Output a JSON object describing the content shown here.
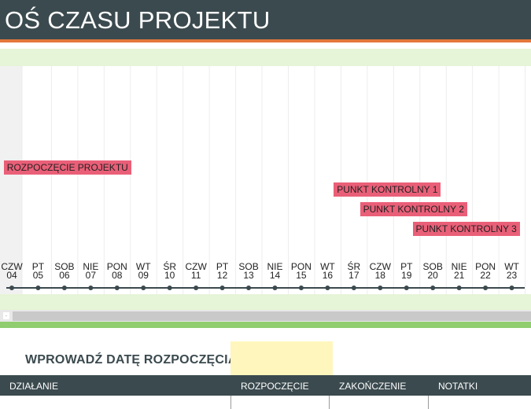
{
  "header": {
    "title": "OŚ CZASU PROJEKTU"
  },
  "timeline": {
    "days": [
      {
        "dow": "CZW",
        "num": "04"
      },
      {
        "dow": "PT",
        "num": "05"
      },
      {
        "dow": "SOB",
        "num": "06"
      },
      {
        "dow": "NIE",
        "num": "07"
      },
      {
        "dow": "PON",
        "num": "08"
      },
      {
        "dow": "WT",
        "num": "09"
      },
      {
        "dow": "ŚR",
        "num": "10"
      },
      {
        "dow": "CZW",
        "num": "11"
      },
      {
        "dow": "PT",
        "num": "12"
      },
      {
        "dow": "SOB",
        "num": "13"
      },
      {
        "dow": "NIE",
        "num": "14"
      },
      {
        "dow": "PON",
        "num": "15"
      },
      {
        "dow": "WT",
        "num": "16"
      },
      {
        "dow": "ŚR",
        "num": "17"
      },
      {
        "dow": "CZW",
        "num": "18"
      },
      {
        "dow": "PT",
        "num": "19"
      },
      {
        "dow": "SOB",
        "num": "20"
      },
      {
        "dow": "NIE",
        "num": "21"
      },
      {
        "dow": "PON",
        "num": "22"
      },
      {
        "dow": "WT",
        "num": "23"
      }
    ],
    "milestones": [
      {
        "label": "ROZPOCZĘCIE PROJEKTU",
        "day_index": 4
      },
      {
        "label": "PUNKT KONTROLNY 1",
        "day_index": 16
      },
      {
        "label": "PUNKT KONTROLNY 2",
        "day_index": 17
      },
      {
        "label": "PUNKT KONTROLNY 3",
        "day_index": 19
      }
    ],
    "colors": {
      "label_bg": "#ea5f78",
      "axis": "#3b4a4f",
      "band": "#e6f4d7"
    }
  },
  "form": {
    "start_label": "WPROWADŹ DATĘ ROZPOCZĘCIA:",
    "start_value": ""
  },
  "table": {
    "headers": [
      "DZIAŁANIE",
      "ROZPOCZĘCIE",
      "ZAKOŃCZENIE",
      "NOTATKI"
    ]
  }
}
